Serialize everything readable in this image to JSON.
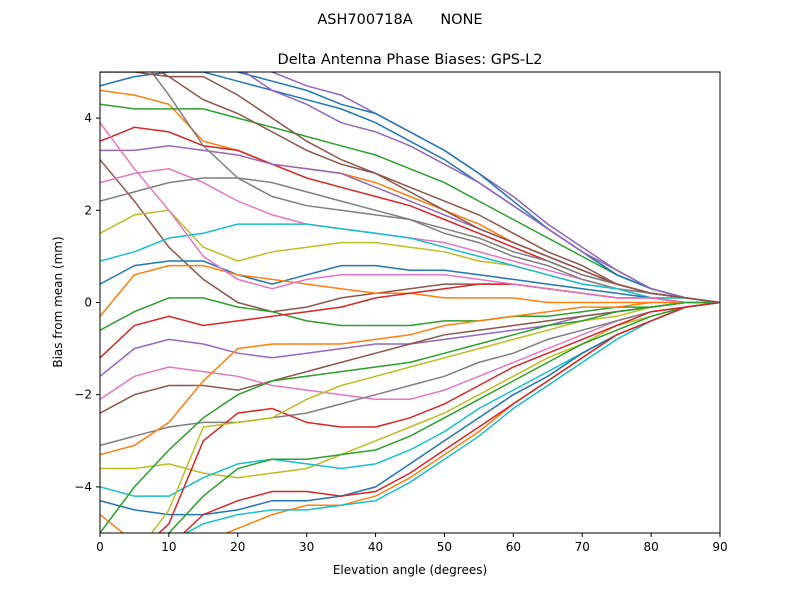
{
  "chart_data": {
    "type": "line",
    "suptitle": "ASH700718A      NONE",
    "title": "Delta Antenna Phase Biases: GPS-L2",
    "xlabel": "Elevation angle (degrees)",
    "ylabel": "Bias from mean (mm)",
    "xlim": [
      0,
      90
    ],
    "ylim": [
      -5,
      5
    ],
    "xticks": [
      0,
      10,
      20,
      30,
      40,
      50,
      60,
      70,
      80,
      90
    ],
    "yticks": [
      -4,
      -2,
      0,
      2,
      4
    ],
    "grid": false,
    "colors": [
      "#1f77b4",
      "#ff7f0e",
      "#2ca02c",
      "#d62728",
      "#9467bd",
      "#8c564b",
      "#e377c2",
      "#7f7f7f",
      "#bcbd22",
      "#17becf"
    ],
    "x": [
      0,
      5,
      10,
      15,
      20,
      25,
      30,
      35,
      40,
      45,
      50,
      55,
      60,
      65,
      70,
      75,
      80,
      85,
      90
    ],
    "series": [
      {
        "values": [
          4.7,
          4.9,
          5.0,
          5.0,
          4.8,
          4.6,
          4.4,
          4.2,
          3.9,
          3.5,
          3.1,
          2.6,
          2.1,
          1.6,
          1.1,
          0.6,
          0.3,
          0.1,
          0
        ]
      },
      {
        "values": [
          4.6,
          4.5,
          4.3,
          3.5,
          3.3,
          3.0,
          2.9,
          2.8,
          2.6,
          2.3,
          2.0,
          1.7,
          1.3,
          1.0,
          0.7,
          0.4,
          0.2,
          0.1,
          0
        ]
      },
      {
        "values": [
          4.3,
          4.2,
          4.2,
          4.2,
          4.0,
          3.8,
          3.6,
          3.4,
          3.2,
          2.9,
          2.6,
          2.2,
          1.8,
          1.4,
          1.0,
          0.6,
          0.3,
          0.1,
          0
        ]
      },
      {
        "values": [
          3.5,
          3.8,
          3.7,
          3.4,
          3.3,
          3.0,
          2.7,
          2.5,
          2.3,
          2.1,
          1.8,
          1.5,
          1.2,
          0.9,
          0.6,
          0.4,
          0.2,
          0.1,
          0
        ]
      },
      {
        "values": [
          3.3,
          3.3,
          3.4,
          3.3,
          3.2,
          3.0,
          2.9,
          2.8,
          2.5,
          2.2,
          1.9,
          1.6,
          1.3,
          1.0,
          0.7,
          0.4,
          0.2,
          0.1,
          0
        ]
      },
      {
        "values": [
          3.1,
          2.2,
          1.2,
          0.5,
          0.0,
          -0.2,
          -0.1,
          0.1,
          0.2,
          0.3,
          0.4,
          0.4,
          0.4,
          0.3,
          0.2,
          0.1,
          0.1,
          0.0,
          0
        ]
      },
      {
        "values": [
          2.6,
          2.8,
          2.9,
          2.6,
          2.2,
          1.9,
          1.7,
          1.6,
          1.5,
          1.4,
          1.3,
          1.1,
          0.9,
          0.7,
          0.5,
          0.3,
          0.2,
          0.1,
          0
        ]
      },
      {
        "values": [
          2.2,
          2.4,
          2.6,
          2.7,
          2.7,
          2.6,
          2.4,
          2.2,
          2.0,
          1.8,
          1.5,
          1.3,
          1.0,
          0.8,
          0.5,
          0.3,
          0.2,
          0.1,
          0
        ]
      },
      {
        "values": [
          1.5,
          1.9,
          2.0,
          1.2,
          0.9,
          1.1,
          1.2,
          1.3,
          1.3,
          1.2,
          1.1,
          0.9,
          0.8,
          0.6,
          0.4,
          0.3,
          0.1,
          0.1,
          0
        ]
      },
      {
        "values": [
          0.9,
          1.1,
          1.4,
          1.5,
          1.7,
          1.7,
          1.7,
          1.6,
          1.5,
          1.4,
          1.2,
          1.0,
          0.8,
          0.6,
          0.4,
          0.3,
          0.1,
          0.1,
          0
        ]
      },
      {
        "values": [
          0.4,
          0.8,
          0.9,
          0.9,
          0.6,
          0.4,
          0.6,
          0.8,
          0.8,
          0.7,
          0.7,
          0.6,
          0.5,
          0.4,
          0.3,
          0.2,
          0.1,
          0.0,
          0
        ]
      },
      {
        "values": [
          -0.3,
          0.6,
          0.8,
          0.8,
          0.6,
          0.5,
          0.4,
          0.3,
          0.2,
          0.2,
          0.1,
          0.1,
          0.1,
          0.0,
          0.0,
          0.0,
          0.0,
          0.0,
          0
        ]
      },
      {
        "values": [
          -0.6,
          -0.2,
          0.1,
          0.1,
          -0.1,
          -0.2,
          -0.4,
          -0.5,
          -0.5,
          -0.5,
          -0.4,
          -0.4,
          -0.3,
          -0.3,
          -0.2,
          -0.1,
          -0.1,
          0.0,
          0
        ]
      },
      {
        "values": [
          -1.2,
          -0.5,
          -0.3,
          -0.5,
          -0.4,
          -0.3,
          -0.2,
          -0.1,
          0.1,
          0.2,
          0.3,
          0.4,
          0.4,
          0.3,
          0.2,
          0.1,
          0.1,
          0.0,
          0
        ]
      },
      {
        "values": [
          -1.6,
          -1.0,
          -0.8,
          -0.9,
          -1.1,
          -1.2,
          -1.1,
          -1.0,
          -0.9,
          -0.9,
          -0.8,
          -0.7,
          -0.6,
          -0.5,
          -0.3,
          -0.2,
          -0.1,
          0.0,
          0
        ]
      },
      {
        "values": [
          -2.4,
          -2.0,
          -1.8,
          -1.8,
          -1.9,
          -1.7,
          -1.5,
          -1.3,
          -1.1,
          -0.9,
          -0.7,
          -0.6,
          -0.5,
          -0.4,
          -0.3,
          -0.2,
          -0.1,
          0.0,
          0
        ]
      },
      {
        "values": [
          -2.1,
          -1.6,
          -1.4,
          -1.5,
          -1.6,
          -1.8,
          -1.9,
          -2.0,
          -2.1,
          -2.1,
          -1.9,
          -1.6,
          -1.3,
          -1.0,
          -0.7,
          -0.4,
          -0.2,
          -0.1,
          0
        ]
      },
      {
        "values": [
          -3.1,
          -2.9,
          -2.7,
          -2.6,
          -2.6,
          -2.5,
          -2.4,
          -2.2,
          -2.0,
          -1.8,
          -1.6,
          -1.3,
          -1.1,
          -0.8,
          -0.6,
          -0.4,
          -0.2,
          -0.1,
          0
        ]
      },
      {
        "values": [
          -3.6,
          -3.6,
          -3.5,
          -3.7,
          -3.8,
          -3.7,
          -3.6,
          -3.3,
          -3.0,
          -2.7,
          -2.4,
          -2.0,
          -1.6,
          -1.2,
          -0.9,
          -0.5,
          -0.3,
          -0.1,
          0
        ]
      },
      {
        "values": [
          -4.0,
          -4.2,
          -4.2,
          -3.8,
          -3.5,
          -3.4,
          -3.5,
          -3.6,
          -3.5,
          -3.2,
          -2.8,
          -2.3,
          -1.9,
          -1.5,
          -1.1,
          -0.7,
          -0.4,
          -0.1,
          0
        ]
      },
      {
        "values": [
          -4.3,
          -4.5,
          -4.6,
          -4.6,
          -4.5,
          -4.3,
          -4.3,
          -4.2,
          -4.0,
          -3.5,
          -3.0,
          -2.5,
          -2.0,
          -1.6,
          -1.1,
          -0.7,
          -0.4,
          -0.1,
          0
        ]
      },
      {
        "values": [
          -4.6,
          -5.2,
          -5.4,
          -5.2,
          -4.9,
          -4.6,
          -4.4,
          -4.4,
          -4.2,
          -3.8,
          -3.3,
          -2.8,
          -2.2,
          -1.7,
          -1.2,
          -0.7,
          -0.4,
          -0.1,
          0
        ]
      },
      {
        "values": [
          -5.5,
          -5.4,
          -5.0,
          -4.2,
          -3.6,
          -3.4,
          -3.4,
          -3.3,
          -3.2,
          -2.9,
          -2.5,
          -2.1,
          -1.7,
          -1.3,
          -0.9,
          -0.6,
          -0.3,
          -0.1,
          0
        ]
      },
      {
        "values": [
          -6.0,
          -5.5,
          -4.8,
          -3.0,
          -2.4,
          -2.3,
          -2.6,
          -2.7,
          -2.7,
          -2.5,
          -2.2,
          -1.8,
          -1.4,
          -1.1,
          -0.8,
          -0.5,
          -0.2,
          -0.1,
          0
        ]
      },
      {
        "values": [
          5.8,
          5.6,
          5.5,
          5.4,
          5.2,
          5.0,
          4.7,
          4.5,
          4.1,
          3.7,
          3.3,
          2.8,
          2.3,
          1.7,
          1.2,
          0.7,
          0.3,
          0.1,
          0
        ]
      },
      {
        "values": [
          5.5,
          5.3,
          4.9,
          4.4,
          4.1,
          3.7,
          3.3,
          3.0,
          2.8,
          2.5,
          2.2,
          1.9,
          1.5,
          1.1,
          0.8,
          0.4,
          0.2,
          0.1,
          0
        ]
      },
      {
        "values": [
          3.9,
          2.9,
          2.0,
          1.0,
          0.5,
          0.3,
          0.5,
          0.6,
          0.6,
          0.6,
          0.6,
          0.5,
          0.4,
          0.3,
          0.2,
          0.1,
          0.1,
          0.0,
          0
        ]
      },
      {
        "values": [
          6.0,
          5.5,
          4.5,
          3.4,
          2.7,
          2.3,
          2.1,
          2.0,
          1.9,
          1.8,
          1.6,
          1.4,
          1.1,
          0.9,
          0.6,
          0.4,
          0.2,
          0.1,
          0
        ]
      },
      {
        "values": [
          -6.0,
          -5.5,
          -4.5,
          -2.7,
          -2.6,
          -2.5,
          -2.1,
          -1.8,
          -1.6,
          -1.4,
          -1.2,
          -1.0,
          -0.8,
          -0.6,
          -0.4,
          -0.3,
          -0.1,
          0.0,
          0
        ]
      },
      {
        "values": [
          -5.8,
          -5.6,
          -5.2,
          -4.8,
          -4.6,
          -4.5,
          -4.5,
          -4.4,
          -4.3,
          -3.9,
          -3.4,
          -2.9,
          -2.3,
          -1.8,
          -1.3,
          -0.8,
          -0.4,
          -0.1,
          0
        ]
      },
      {
        "values": [
          6.0,
          5.8,
          5.6,
          5.3,
          5.0,
          4.8,
          4.6,
          4.3,
          4.1,
          3.7,
          3.3,
          2.8,
          2.2,
          1.6,
          1.1,
          0.6,
          0.3,
          0.1,
          0
        ]
      },
      {
        "values": [
          -3.3,
          -3.1,
          -2.6,
          -1.7,
          -1.0,
          -0.9,
          -0.9,
          -0.9,
          -0.8,
          -0.7,
          -0.5,
          -0.4,
          -0.3,
          -0.2,
          -0.1,
          -0.1,
          0.0,
          0.0,
          0
        ]
      },
      {
        "values": [
          -5.0,
          -4.0,
          -3.2,
          -2.5,
          -2.0,
          -1.7,
          -1.6,
          -1.5,
          -1.4,
          -1.3,
          -1.1,
          -0.9,
          -0.7,
          -0.5,
          -0.4,
          -0.2,
          -0.1,
          0.0,
          0
        ]
      },
      {
        "values": [
          -6.0,
          -5.7,
          -5.3,
          -4.6,
          -4.3,
          -4.1,
          -4.1,
          -4.2,
          -4.1,
          -3.7,
          -3.2,
          -2.7,
          -2.2,
          -1.7,
          -1.2,
          -0.7,
          -0.4,
          -0.1,
          0
        ]
      },
      {
        "values": [
          6.0,
          5.9,
          5.7,
          5.5,
          5.1,
          4.6,
          4.3,
          3.9,
          3.7,
          3.4,
          3.0,
          2.6,
          2.1,
          1.6,
          1.1,
          0.7,
          0.3,
          0.1,
          0
        ]
      },
      {
        "values": [
          5.0,
          5.0,
          4.9,
          4.9,
          4.5,
          4.0,
          3.5,
          3.1,
          2.8,
          2.4,
          2.0,
          1.6,
          1.3,
          1.0,
          0.7,
          0.4,
          0.2,
          0.1,
          0
        ]
      }
    ]
  }
}
